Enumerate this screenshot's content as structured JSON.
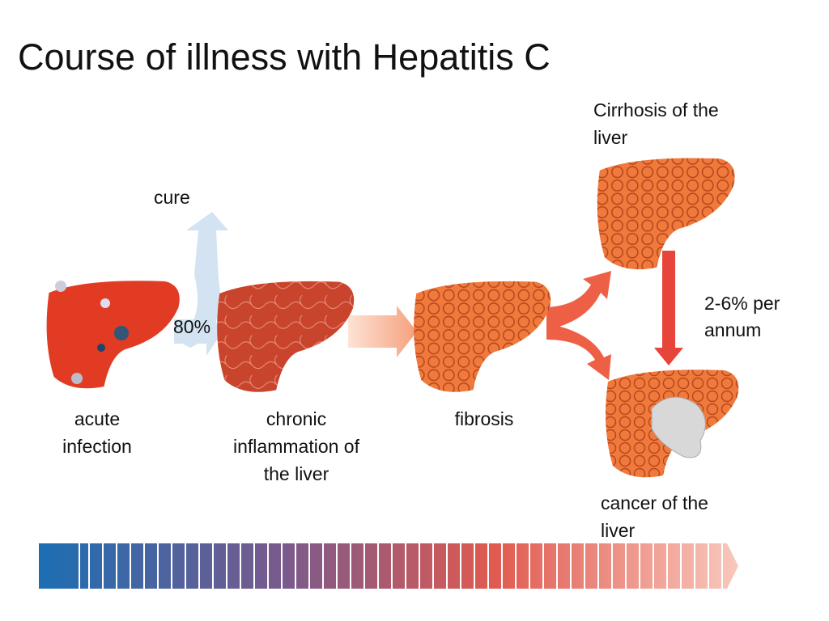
{
  "title": "Course of illness with Hepatitis C",
  "stages": [
    {
      "lines": [
        "acute",
        "infection"
      ]
    },
    {
      "lines": [
        "chronic",
        "inflammation of",
        "the liver"
      ]
    },
    {
      "lines": [
        "fibrosis"
      ]
    },
    {
      "lines": [
        "Cirrhosis of the",
        "liver"
      ]
    },
    {
      "lines": [
        "cancer of the",
        "liver"
      ]
    }
  ],
  "arrows": {
    "cure": "cure",
    "chronic_share": "80%",
    "cancer_rate": [
      "2-6% per",
      "annum"
    ]
  }
}
